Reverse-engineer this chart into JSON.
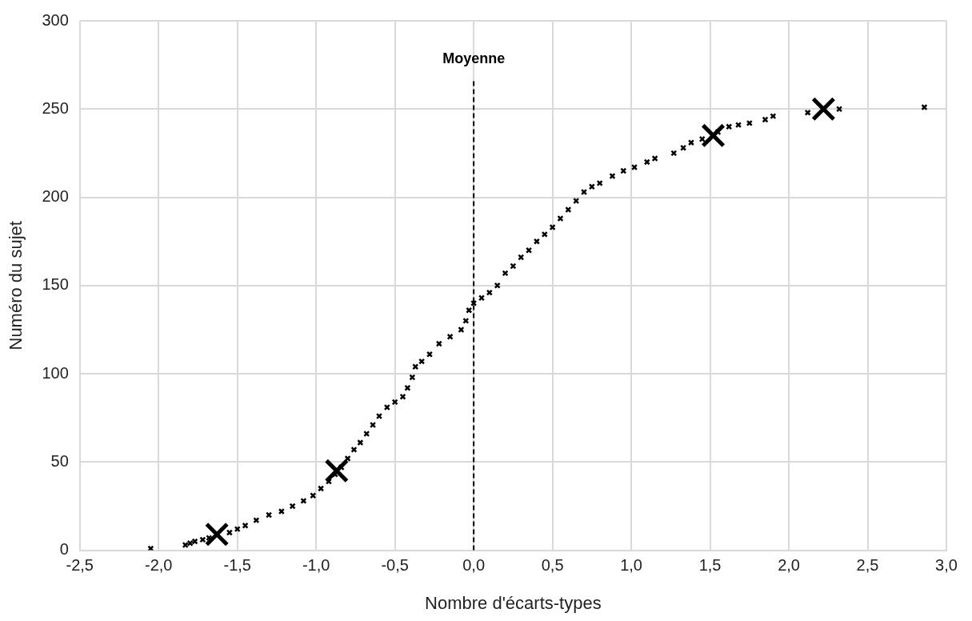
{
  "chart_data": {
    "type": "scatter",
    "xlabel": "Nombre d'écarts-types",
    "ylabel": "Numéro du sujet",
    "xlim": [
      -2.5,
      3.0
    ],
    "xticks": [
      {
        "value": -2.5,
        "label": "-2,5"
      },
      {
        "value": -2.0,
        "label": "-2,0"
      },
      {
        "value": -1.5,
        "label": "-1,5"
      },
      {
        "value": -1.0,
        "label": "-1,0"
      },
      {
        "value": -0.5,
        "label": "-0,5"
      },
      {
        "value": 0.0,
        "label": "0,0"
      },
      {
        "value": 0.5,
        "label": "0,5"
      },
      {
        "value": 1.0,
        "label": "1,0"
      },
      {
        "value": 1.5,
        "label": "1,5"
      },
      {
        "value": 2.0,
        "label": "2,0"
      },
      {
        "value": 2.5,
        "label": "2,5"
      },
      {
        "value": 3.0,
        "label": "3,0"
      }
    ],
    "ylim": [
      0,
      300
    ],
    "yticks": [
      0,
      50,
      100,
      150,
      200,
      250,
      300
    ],
    "grid": true,
    "legend": false,
    "marker": "cross",
    "ref_lines": [
      {
        "axis": "x",
        "value": 0,
        "label": "Moyenne",
        "color": "#000000",
        "line_style": "dashed"
      }
    ],
    "series": [
      {
        "color": "#000000",
        "x": [
          -2.05,
          -1.83,
          -1.8,
          -1.77,
          -1.72,
          -1.68,
          -1.55,
          -1.5,
          -1.45,
          -1.38,
          -1.3,
          -1.22,
          -1.15,
          -1.08,
          -1.02,
          -0.97,
          -0.92,
          -0.88,
          -0.84,
          -0.8,
          -0.76,
          -0.72,
          -0.68,
          -0.64,
          -0.6,
          -0.55,
          -0.5,
          -0.45,
          -0.42,
          -0.39,
          -0.37,
          -0.33,
          -0.28,
          -0.22,
          -0.15,
          -0.08,
          -0.05,
          -0.03,
          0.0,
          0.05,
          0.1,
          0.15,
          0.2,
          0.25,
          0.3,
          0.35,
          0.4,
          0.45,
          0.5,
          0.55,
          0.6,
          0.65,
          0.7,
          0.75,
          0.8,
          0.88,
          0.95,
          1.02,
          1.1,
          1.15,
          1.27,
          1.33,
          1.38,
          1.45,
          1.55,
          1.62,
          1.68,
          1.75,
          1.85,
          1.9,
          2.12,
          2.32,
          2.86
        ],
        "values": [
          1,
          3,
          4,
          5,
          6,
          7,
          10,
          12,
          14,
          17,
          20,
          22,
          25,
          28,
          31,
          35,
          39,
          43,
          47,
          52,
          57,
          61,
          66,
          71,
          76,
          81,
          84,
          87,
          92,
          98,
          104,
          107,
          111,
          117,
          121,
          125,
          130,
          136,
          140,
          143,
          146,
          150,
          157,
          161,
          166,
          170,
          175,
          179,
          183,
          188,
          193,
          198,
          203,
          206,
          208,
          212,
          215,
          217,
          220,
          222,
          225,
          228,
          231,
          233,
          237,
          240,
          241,
          242,
          244,
          246,
          248,
          250,
          251
        ]
      },
      {
        "color": "#000000",
        "x": [
          -1.63,
          -0.87,
          1.52,
          2.22
        ],
        "values": [
          9,
          45,
          235,
          250
        ]
      }
    ]
  }
}
